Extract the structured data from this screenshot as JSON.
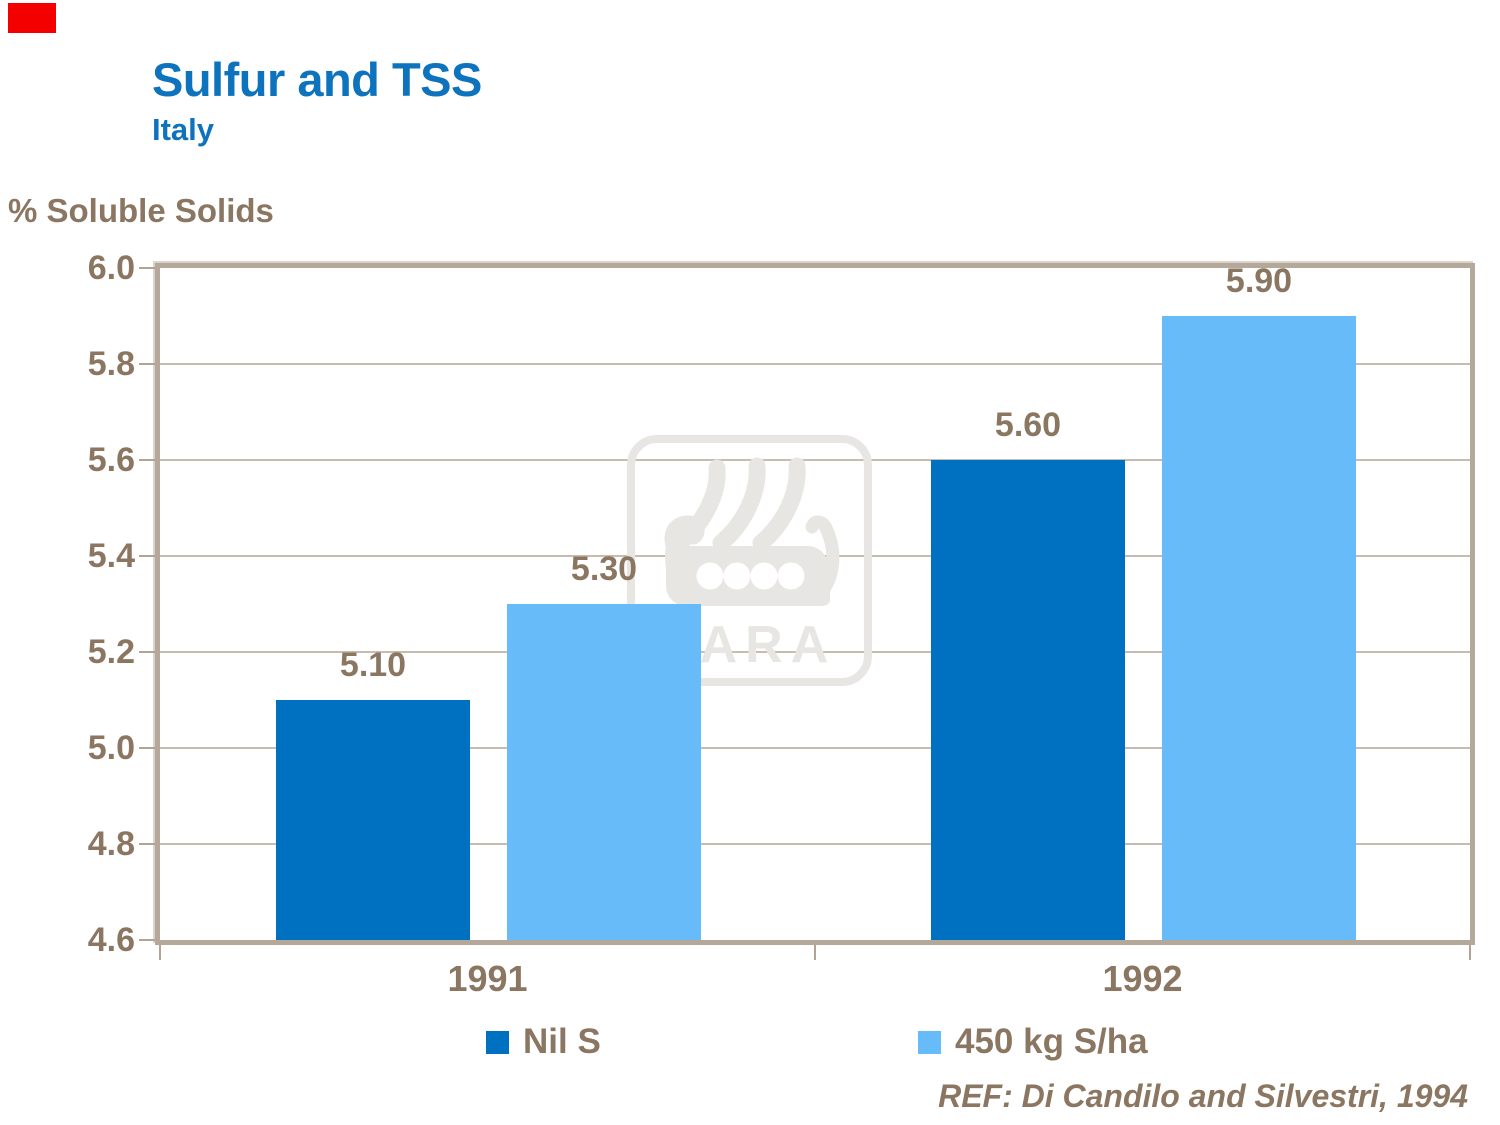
{
  "slide": {
    "title": "Sulfur and TSS",
    "subtitle": "Italy",
    "axis_title": "% Soluble Solids",
    "reference": "REF: Di Candilo and Silvestri, 1994",
    "watermark_text": "YARA"
  },
  "colors": {
    "title_blue": "#0E73BD",
    "text_brown": "#8A7661",
    "series_nil_s": "#0070C0",
    "series_450": "#66BBF8",
    "plot_border": "#B4A89A",
    "gridline": "#C7BCAE",
    "watermark_gray": "#E8E6E3",
    "corner_red": "#F40000"
  },
  "legend": {
    "items": [
      {
        "label": "Nil S",
        "color": "#0070C0"
      },
      {
        "label": "450 kg S/ha",
        "color": "#66BBF8"
      }
    ]
  },
  "chart_data": {
    "type": "bar",
    "title": "Sulfur and TSS — Italy",
    "categories": [
      "1991",
      "1992"
    ],
    "series": [
      {
        "name": "Nil S",
        "color": "#0070C0",
        "values": [
          5.1,
          5.6
        ]
      },
      {
        "name": "450 kg S/ha",
        "color": "#66BBF8",
        "values": [
          5.3,
          5.9
        ]
      }
    ],
    "xlabel": "",
    "ylabel": "% Soluble Solids",
    "ylim": [
      4.6,
      6.0
    ],
    "ytick_step": 0.2,
    "grid": true,
    "legend_position": "bottom",
    "value_label_decimals": 2
  }
}
